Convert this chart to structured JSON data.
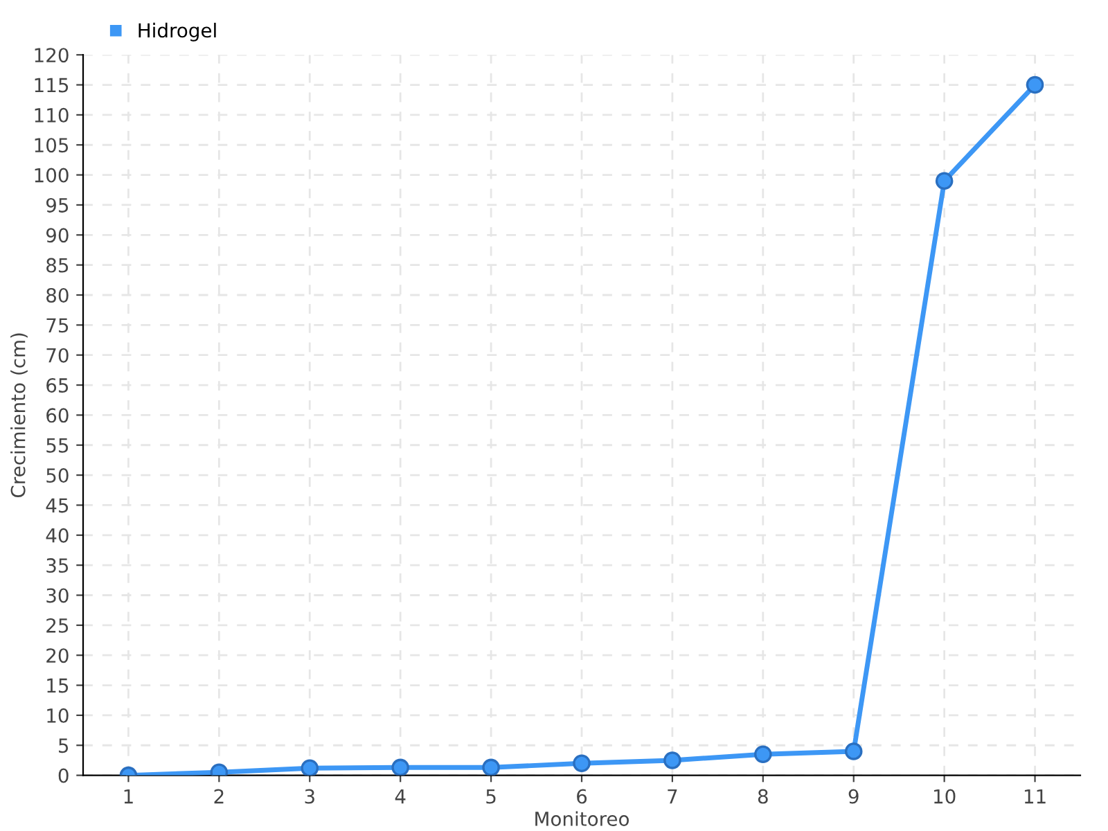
{
  "chart_data": {
    "type": "line",
    "xlabel": "Monitoreo",
    "ylabel": "Crecimiento (cm)",
    "categories": [
      "1",
      "2",
      "3",
      "4",
      "5",
      "6",
      "7",
      "8",
      "9",
      "10",
      "11"
    ],
    "series": [
      {
        "name": "Hidrogel",
        "color": "#3d97f5",
        "values": [
          0,
          0.5,
          1.2,
          1.3,
          1.3,
          2.0,
          2.5,
          3.5,
          4.0,
          99,
          115
        ]
      }
    ],
    "ylim": [
      0,
      120
    ],
    "yticks": [
      0,
      5,
      10,
      15,
      20,
      25,
      30,
      35,
      40,
      45,
      50,
      55,
      60,
      65,
      70,
      75,
      80,
      85,
      90,
      95,
      100,
      105,
      110,
      115,
      120
    ],
    "grid": true,
    "legend": "top left",
    "marker": "circle",
    "line_style": "solid"
  }
}
